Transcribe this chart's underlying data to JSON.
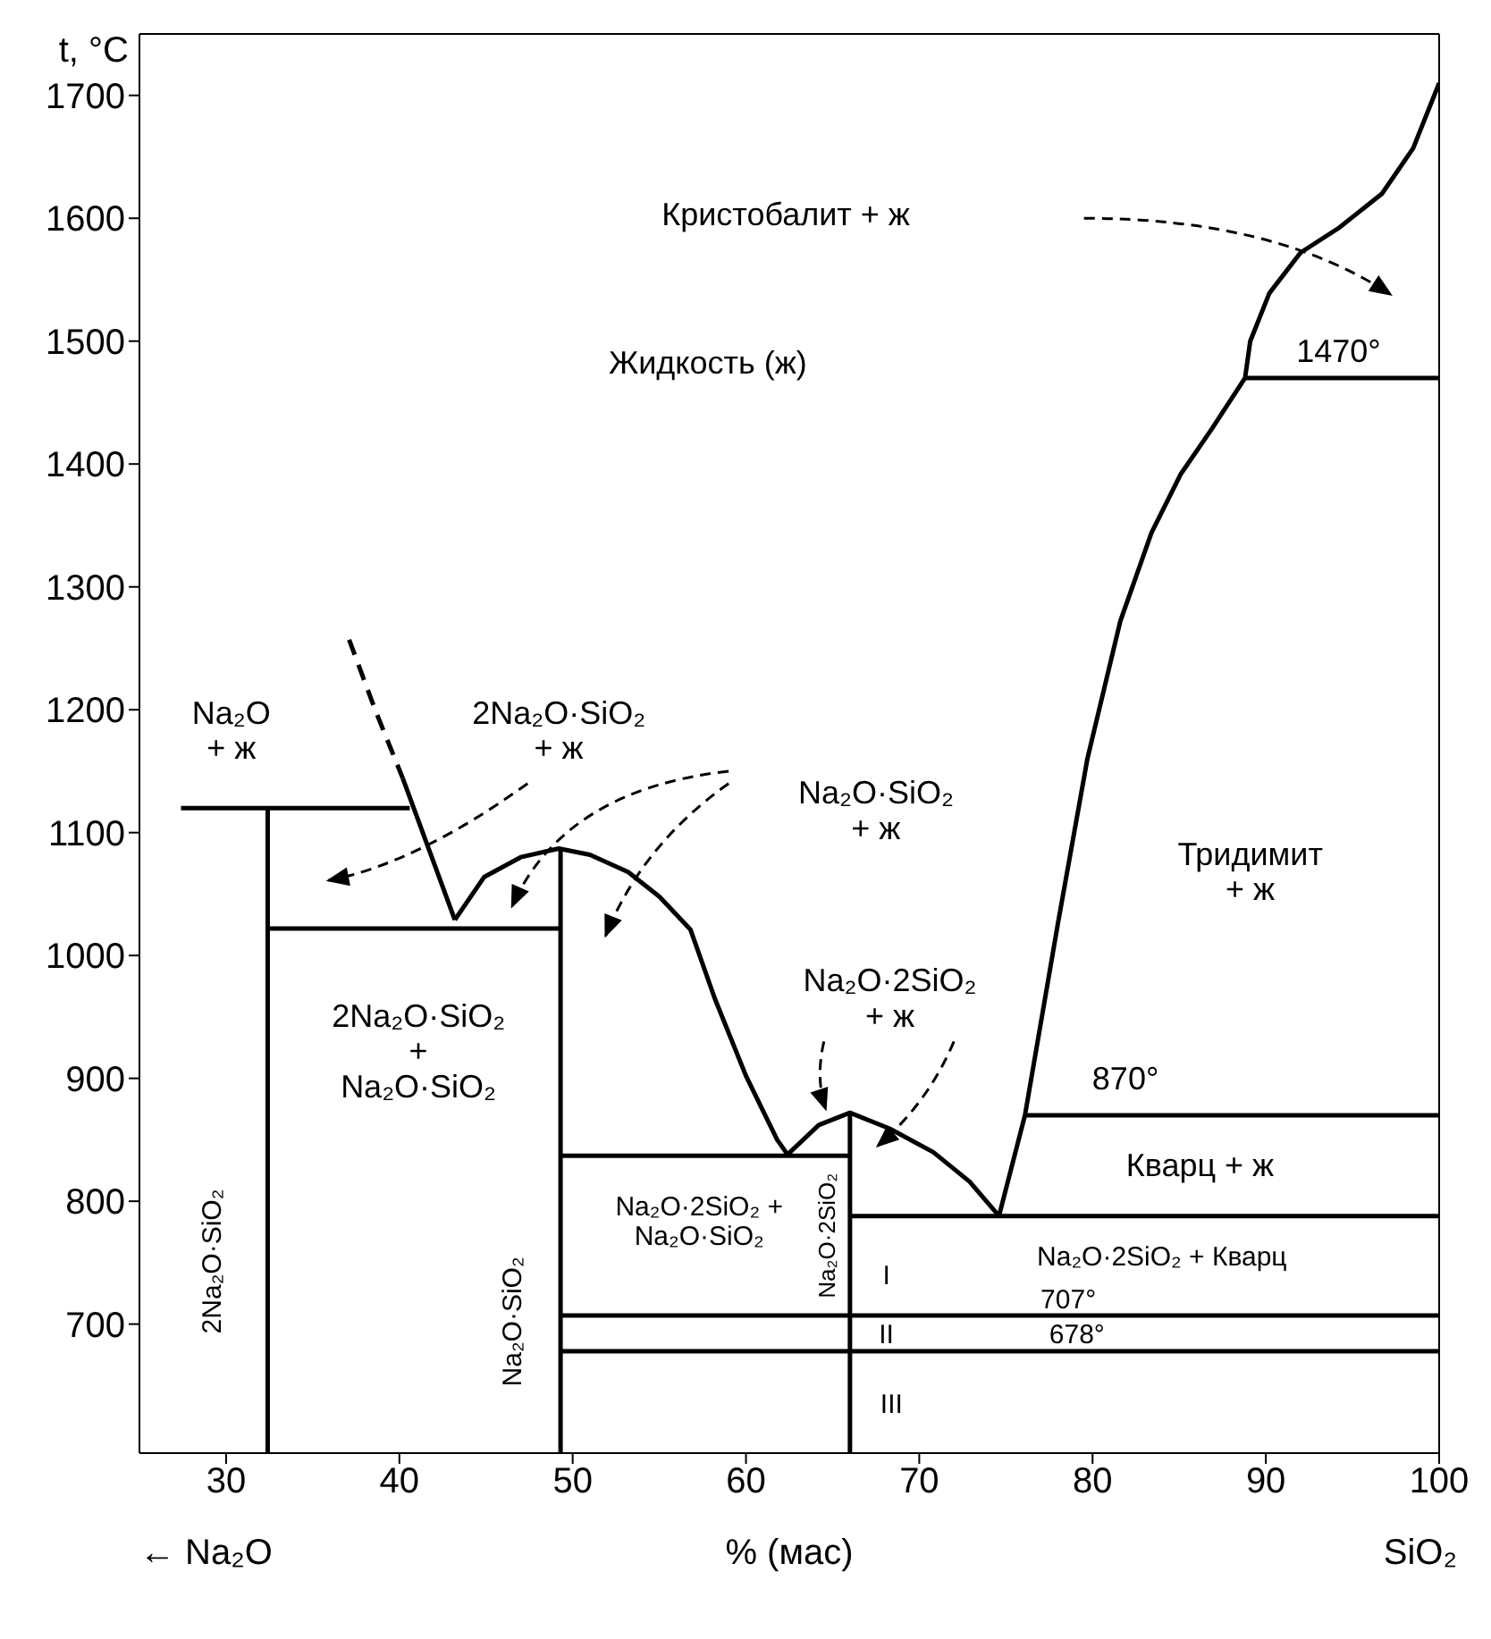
{
  "chart_data": {
    "type": "line",
    "xlabel": "% (мас)",
    "ylabel": "t, °C",
    "xlim": [
      25,
      100
    ],
    "xticks": [
      30,
      40,
      50,
      60,
      70,
      80,
      90,
      100
    ],
    "ylim": [
      595,
      1750
    ],
    "yticks": [
      700,
      800,
      900,
      1000,
      1100,
      1200,
      1300,
      1400,
      1500,
      1600,
      1700
    ],
    "series": [
      {
        "color": "#000000",
        "line_style": "dashed",
        "x": [
          37.1,
          38.6,
          40.2
        ],
        "values": [
          1257,
          1200,
          1144
        ]
      },
      {
        "color": "#000000",
        "x": [
          40.2,
          43.2
        ],
        "values": [
          1144,
          1029
        ]
      },
      {
        "color": "#000000",
        "x": [
          27.4,
          40.6
        ],
        "values": [
          1120,
          1120
        ]
      },
      {
        "color": "#000000",
        "x": [
          32.4,
          32.4
        ],
        "values": [
          1120,
          595
        ]
      },
      {
        "color": "#000000",
        "x": [
          32.4,
          49.3
        ],
        "values": [
          1022,
          1022
        ]
      },
      {
        "color": "#000000",
        "x": [
          43.2,
          44.9,
          47.0,
          49.2,
          51.0,
          53.2,
          55.0,
          56.8,
          58.2,
          60.0,
          61.8,
          62.4
        ],
        "values": [
          1029,
          1064,
          1080,
          1087,
          1082,
          1068,
          1048,
          1021,
          965,
          902,
          850,
          838
        ]
      },
      {
        "color": "#000000",
        "x": [
          49.3,
          49.3
        ],
        "values": [
          1087,
          595
        ]
      },
      {
        "color": "#000000",
        "x": [
          49.3,
          66.0
        ],
        "values": [
          837,
          837
        ]
      },
      {
        "color": "#000000",
        "x": [
          62.4,
          64.2,
          66.0,
          68.3,
          70.8,
          72.9,
          74.6
        ],
        "values": [
          838,
          862,
          872,
          859,
          840,
          816,
          788
        ]
      },
      {
        "color": "#000000",
        "x": [
          66.0,
          66.0
        ],
        "values": [
          872,
          595
        ]
      },
      {
        "color": "#000000",
        "x": [
          66.0,
          100
        ],
        "values": [
          788,
          788
        ]
      },
      {
        "color": "#000000",
        "x": [
          49.3,
          100
        ],
        "values": [
          707,
          707
        ]
      },
      {
        "color": "#000000",
        "x": [
          49.3,
          100
        ],
        "values": [
          678,
          678
        ]
      },
      {
        "color": "#000000",
        "x": [
          76.1,
          100
        ],
        "values": [
          870,
          870
        ]
      },
      {
        "color": "#000000",
        "x": [
          88.8,
          100
        ],
        "values": [
          1470,
          1470
        ]
      },
      {
        "color": "#000000",
        "x": [
          74.6,
          76.1,
          78.0,
          79.7,
          81.6,
          83.4,
          85.1,
          86.9,
          88.8,
          89.1,
          90.2,
          92.0,
          94.2,
          96.7,
          98.5,
          100
        ],
        "values": [
          788,
          870,
          1026,
          1160,
          1272,
          1344,
          1392,
          1429,
          1470,
          1500,
          1539,
          1572,
          1592,
          1620,
          1657,
          1710
        ]
      }
    ],
    "annotations": [
      "Кристобалит + ж",
      "Жидкость (ж)",
      "1470°",
      "Na₂O\n+ ж",
      "2Na₂O·SiO₂\n+ ж",
      "Na₂O·SiO₂\n+ ж",
      "Тридимит\n+ ж",
      "2Na₂O·SiO₂\n+\nNa₂O·SiO₂",
      "Na₂O·2SiO₂\n+ ж",
      "870°",
      "Кварц + ж",
      "Na₂O·2SiO₂ +\nNa₂O·SiO₂",
      "2Na₂O·SiO₂",
      "Na₂O·SiO₂",
      "Na₂O·2SiO₂",
      "Na₂O·2SiO₂ + Кварц",
      "I",
      "II",
      "III",
      "707°",
      "678°",
      "← Na₂O",
      "SiO₂"
    ]
  }
}
